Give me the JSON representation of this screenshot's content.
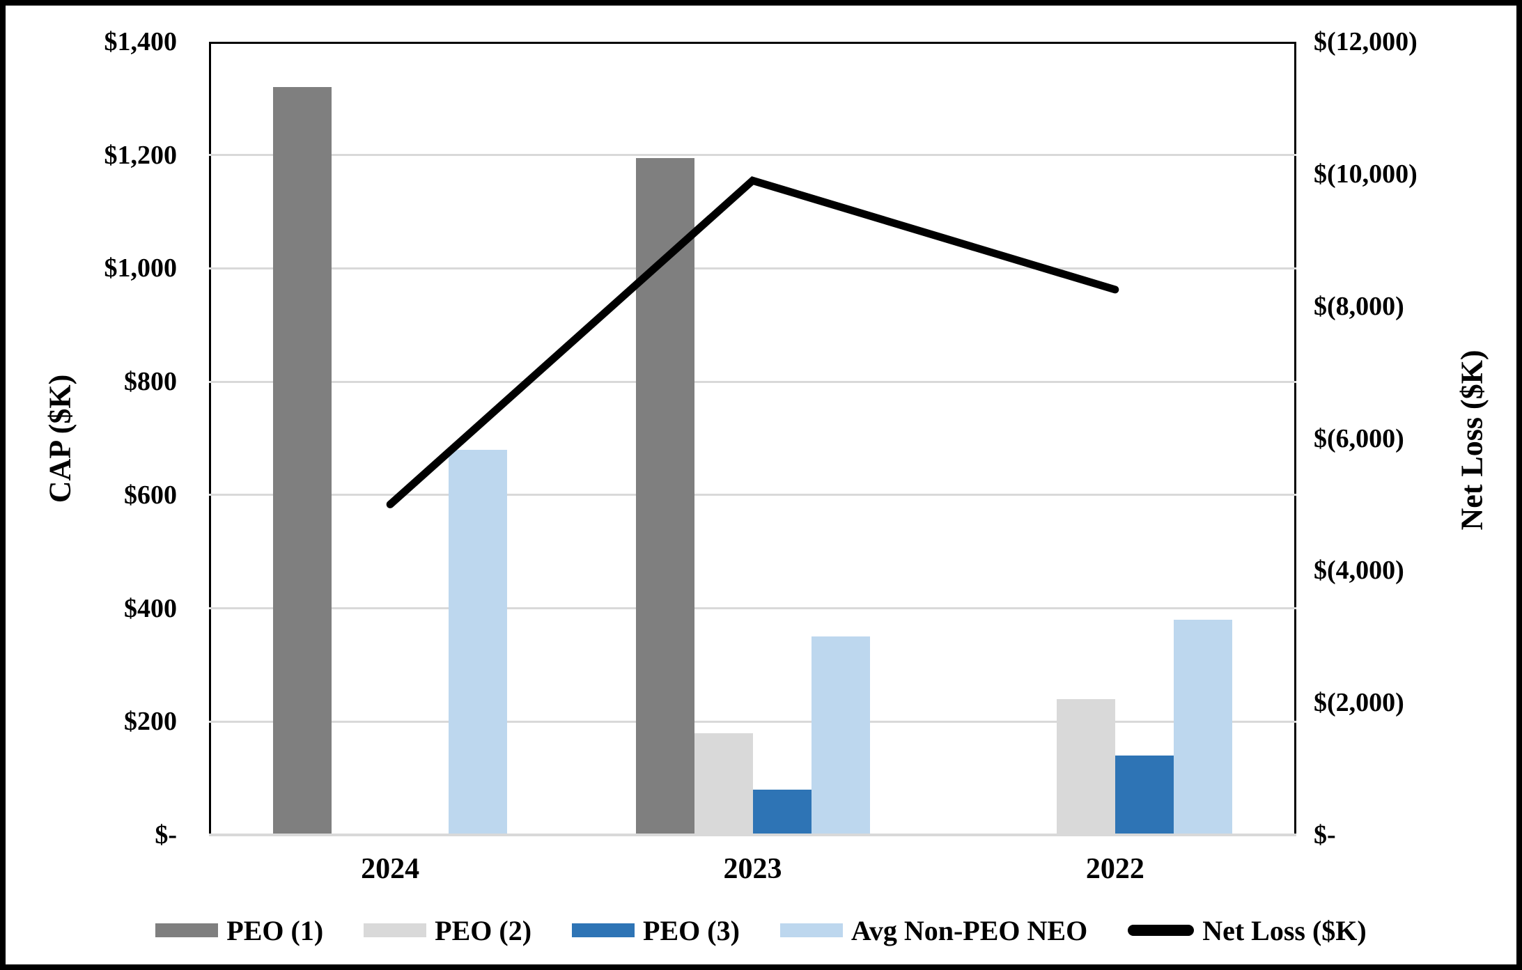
{
  "chart_data": {
    "type": "combo-bar-line",
    "title": "",
    "categories": [
      "2024",
      "2023",
      "2022"
    ],
    "bar_series": [
      {
        "name": "PEO (1)",
        "color": "#7F7F7F",
        "values": [
          1320,
          1195,
          null
        ]
      },
      {
        "name": "PEO (2)",
        "color": "#D9D9D9",
        "values": [
          null,
          180,
          240
        ]
      },
      {
        "name": "PEO (3)",
        "color": "#2E74B5",
        "values": [
          null,
          80,
          140
        ]
      },
      {
        "name": "Avg Non-PEO NEO",
        "color": "#BDD7EE",
        "values": [
          680,
          350,
          380
        ]
      }
    ],
    "line_series": {
      "name": "Net Loss ($K)",
      "color": "#000000",
      "values": [
        -5000,
        -9900,
        -8250
      ]
    },
    "left_axis": {
      "title": "CAP ($K)",
      "max": 1400,
      "min": 0,
      "step": 200,
      "tick_labels": [
        "$1,400",
        "$1,200",
        "$1,000",
        "$800",
        "$600",
        "$400",
        "$200",
        "$-"
      ]
    },
    "right_axis": {
      "title": "Net Loss ($K)",
      "max": 12000,
      "min": 0,
      "step": 2000,
      "tick_labels": [
        "$(12,000)",
        "$(10,000)",
        "$(8,000)",
        "$(6,000)",
        "$(4,000)",
        "$(2,000)",
        "$-"
      ]
    },
    "legend": [
      {
        "label": "PEO (1)",
        "swatch": "rect",
        "color": "#7F7F7F"
      },
      {
        "label": "PEO (2)",
        "swatch": "rect",
        "color": "#D9D9D9"
      },
      {
        "label": "PEO (3)",
        "swatch": "rect",
        "color": "#2E74B5"
      },
      {
        "label": "Avg Non-PEO NEO",
        "swatch": "rect",
        "color": "#BDD7EE"
      },
      {
        "label": "Net Loss ($K)",
        "swatch": "line",
        "color": "#000000"
      }
    ],
    "grid": true,
    "legend_position": "bottom",
    "gridline_color": "#D9D9D9",
    "background_color": "#FFFFFF",
    "border_color": "#000000"
  }
}
